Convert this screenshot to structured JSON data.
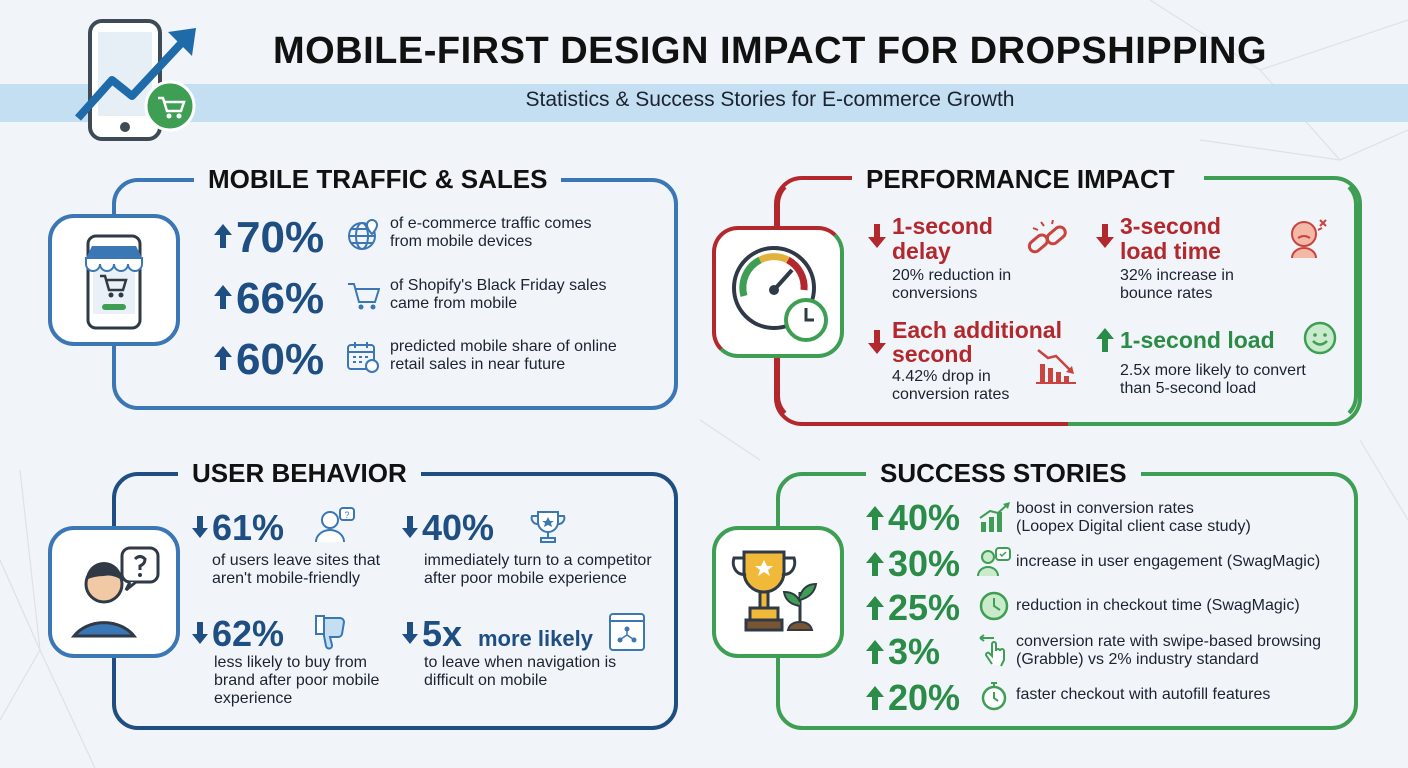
{
  "header": {
    "title": "MOBILE-FIRST DESIGN IMPACT FOR DROPSHIPPING",
    "subtitle": "Statistics & Success Stories for E-commerce Growth"
  },
  "colors": {
    "blue": "#3a77b4",
    "navy": "#1f4e82",
    "red": "#b3282d",
    "green": "#3e9e54",
    "band": "#c4def2"
  },
  "traffic": {
    "title": "MOBILE TRAFFIC & SALES",
    "stats": [
      {
        "value": "70%",
        "text1": "of e-commerce traffic comes",
        "text2": "from mobile devices",
        "icon": "globe-icon"
      },
      {
        "value": "66%",
        "text1": "of Shopify's Black Friday sales",
        "text2": "came from mobile",
        "icon": "cart-icon"
      },
      {
        "value": "60%",
        "text1": "predicted mobile share of online",
        "text2": "retail sales in near future",
        "icon": "calendar-icon"
      }
    ]
  },
  "performance": {
    "title": "PERFORMANCE IMPACT",
    "items": [
      {
        "head1": "1-second",
        "head2": "delay",
        "text1": "20% reduction in",
        "text2": "conversions",
        "icon": "broken-chain-icon"
      },
      {
        "head1": "3-second",
        "head2": "load time",
        "text1": "32% increase in",
        "text2": "bounce rates",
        "icon": "frustrated-face-icon"
      },
      {
        "head1": "Each additional",
        "head2": "second",
        "text1": "4.42% drop in",
        "text2": "conversion rates",
        "icon": "declining-chart-icon"
      },
      {
        "head1": "1-second load",
        "text1": "2.5x more likely to convert",
        "text2": "than 5-second load",
        "icon": "happy-face-icon"
      }
    ]
  },
  "behavior": {
    "title": "USER BEHAVIOR",
    "items": [
      {
        "value": "61%",
        "text1": "of users leave sites that",
        "text2": "aren't mobile-friendly",
        "icon": "confused-user-icon"
      },
      {
        "value": "40%",
        "text1": "immediately turn to a competitor",
        "text2": "after poor mobile experience",
        "icon": "trophy-icon"
      },
      {
        "value": "62%",
        "text1": "less likely to buy from",
        "text2": "brand after poor mobile",
        "text3": "experience",
        "icon": "thumbs-down-icon"
      },
      {
        "value": "5x",
        "suffix": "more likely",
        "text1": "to leave when navigation is",
        "text2": "difficult on mobile",
        "icon": "navigation-icon"
      }
    ]
  },
  "success": {
    "title": "SUCCESS STORIES",
    "items": [
      {
        "value": "40%",
        "text1": "boost in conversion rates",
        "text2": "(Loopex Digital client case study)",
        "icon": "growth-chart-icon"
      },
      {
        "value": "30%",
        "text1": "increase in user engagement (SwagMagic)",
        "icon": "engaged-user-icon"
      },
      {
        "value": "25%",
        "text1": "reduction in checkout time (SwagMagic)",
        "icon": "clock-icon"
      },
      {
        "value": "3%",
        "text1": "conversion rate with swipe-based browsing",
        "text2": "(Grabble) vs 2% industry standard",
        "icon": "swipe-icon"
      },
      {
        "value": "20%",
        "text1": "faster checkout with autofill features",
        "icon": "stopwatch-icon"
      }
    ]
  }
}
